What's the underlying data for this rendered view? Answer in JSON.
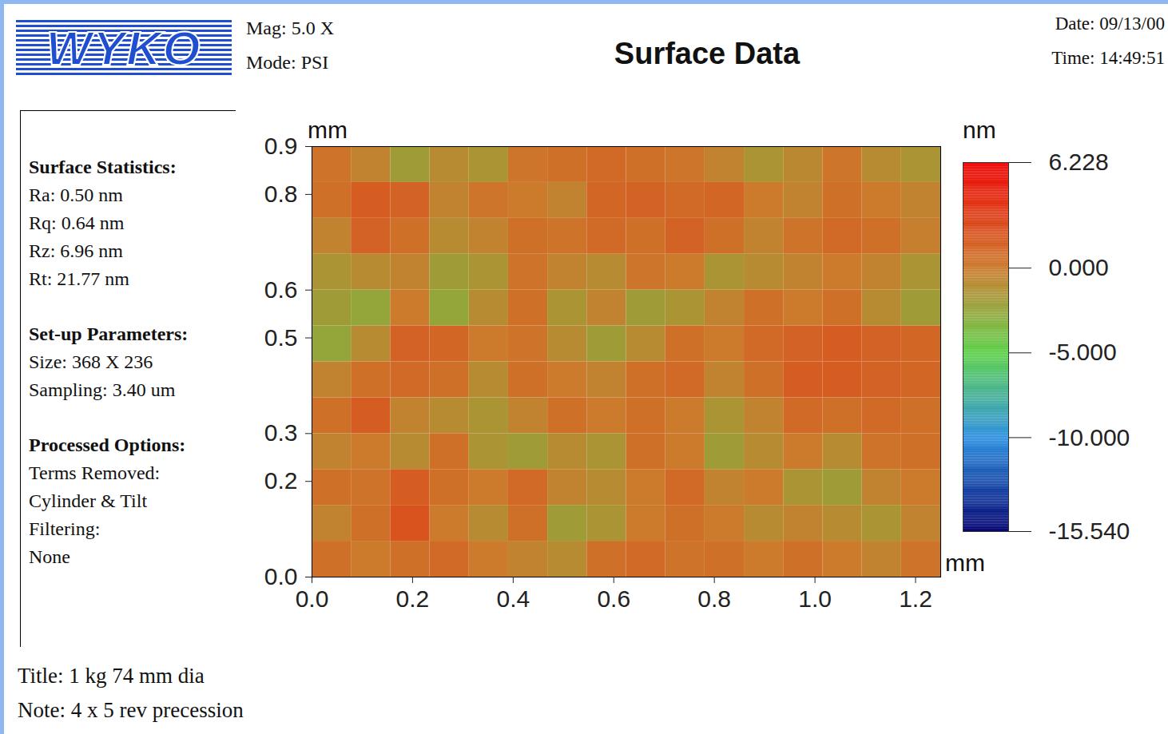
{
  "header": {
    "logo": "WYKO",
    "left": [
      "Mag: 5.0 X",
      "Mode: PSI"
    ],
    "right": [
      "Date: 09/13/00",
      "Time: 14:49:51"
    ]
  },
  "panel": [
    {
      "heading": "Surface Statistics:",
      "lines": [
        "Ra: 0.50 nm",
        "Rq: 0.64 nm",
        "Rz: 6.96 nm",
        "Rt: 21.77 nm"
      ]
    },
    {
      "heading": "Set-up Parameters:",
      "lines": [
        "Size: 368 X 236",
        "Sampling: 3.40 um"
      ]
    },
    {
      "heading": "Processed Options:",
      "lines": [
        "Terms Removed:",
        "Cylinder & Tilt",
        "Filtering:",
        "None"
      ]
    }
  ],
  "footer": [
    "Title: 1 kg 74 mm dia",
    "Note: 4 x 5 rev precession"
  ],
  "chart_data": {
    "type": "heatmap",
    "title": "Surface Data",
    "x_label": "mm",
    "y_label": "mm",
    "xlim": [
      0,
      1.25
    ],
    "ylim": [
      0,
      0.9
    ],
    "xticks": [
      {
        "value": 0,
        "label": "0.0"
      },
      {
        "value": 0.2,
        "label": "0.2"
      },
      {
        "value": 0.4,
        "label": "0.4"
      },
      {
        "value": 0.6,
        "label": "0.6"
      },
      {
        "value": 0.8,
        "label": "0.8"
      },
      {
        "value": 1.0,
        "label": "1.0"
      },
      {
        "value": 1.2,
        "label": "1.2"
      }
    ],
    "yticks": [
      {
        "value": 0,
        "label": "0.0"
      },
      {
        "value": 0.2,
        "label": "0.2"
      },
      {
        "value": 0.3,
        "label": "0.3"
      },
      {
        "value": 0.5,
        "label": "0.5"
      },
      {
        "value": 0.6,
        "label": "0.6"
      },
      {
        "value": 0.8,
        "label": "0.8"
      },
      {
        "value": 0.9,
        "label": "0.9"
      }
    ],
    "cells": [
      [
        0.3,
        -0.5,
        -2.0,
        -1.0,
        -1.5,
        0.2,
        0.5,
        0.8,
        0.5,
        0.2,
        -0.5,
        -1.5,
        -0.8,
        0.2,
        -1.0,
        -1.5
      ],
      [
        0.5,
        1.5,
        1.2,
        -0.5,
        0.2,
        0.0,
        -0.5,
        1.0,
        1.2,
        0.8,
        1.0,
        0.0,
        -0.5,
        0.5,
        0.0,
        -0.5
      ],
      [
        -0.5,
        1.2,
        0.5,
        -1.0,
        -0.5,
        0.5,
        0.3,
        0.8,
        0.5,
        1.2,
        0.5,
        -0.5,
        0.3,
        0.8,
        0.5,
        -0.3
      ],
      [
        -1.5,
        -1.0,
        -0.5,
        -2.0,
        -1.5,
        0.3,
        -0.5,
        -1.0,
        0.2,
        0.0,
        -1.5,
        -1.0,
        -0.5,
        0.0,
        -0.5,
        -1.5
      ],
      [
        -2.0,
        -2.5,
        0.0,
        -2.5,
        -1.0,
        0.5,
        -1.5,
        -0.5,
        -2.0,
        -1.5,
        -0.5,
        0.5,
        0.0,
        0.5,
        -1.0,
        -2.0
      ],
      [
        -2.5,
        -1.0,
        1.2,
        1.0,
        0.0,
        0.3,
        -1.0,
        -2.0,
        -1.0,
        0.5,
        0.0,
        0.8,
        1.2,
        1.5,
        1.2,
        1.0
      ],
      [
        -0.5,
        0.5,
        0.8,
        0.5,
        -1.0,
        0.5,
        0.0,
        -0.5,
        0.5,
        0.8,
        -0.5,
        0.5,
        1.5,
        1.5,
        1.2,
        1.0
      ],
      [
        0.5,
        1.5,
        -0.5,
        -1.0,
        -1.5,
        -0.5,
        0.5,
        0.0,
        0.5,
        0.0,
        -1.5,
        -0.5,
        0.8,
        0.5,
        0.8,
        0.5
      ],
      [
        -0.5,
        0.0,
        -1.0,
        0.5,
        -1.5,
        -2.0,
        -1.0,
        -1.5,
        0.5,
        0.0,
        -2.0,
        -1.0,
        0.0,
        -1.0,
        0.3,
        0.5
      ],
      [
        0.5,
        0.3,
        1.5,
        0.5,
        0.0,
        0.8,
        -0.5,
        -1.0,
        0.0,
        0.8,
        -0.5,
        0.0,
        -1.5,
        -2.0,
        -0.5,
        0.0
      ],
      [
        -0.5,
        0.5,
        2.0,
        0.0,
        -1.0,
        0.5,
        -2.0,
        -1.5,
        0.0,
        0.5,
        0.0,
        -1.0,
        -0.5,
        -1.0,
        -1.5,
        -0.5
      ],
      [
        0.5,
        0.0,
        0.5,
        0.8,
        0.0,
        -0.5,
        -1.0,
        0.5,
        0.8,
        0.3,
        0.5,
        0.0,
        0.5,
        0.0,
        -0.5,
        0.3
      ]
    ],
    "colorbar": {
      "label": "nm",
      "range": [
        -15.54,
        6.228
      ],
      "ticks": [
        6.228,
        {
          "value": 0,
          "label": "0.000"
        },
        {
          "value": -5,
          "label": "-5.000"
        },
        {
          "value": -10,
          "label": "-10.000"
        },
        {
          "value": -15.54,
          "label": "-15.540"
        }
      ]
    }
  }
}
